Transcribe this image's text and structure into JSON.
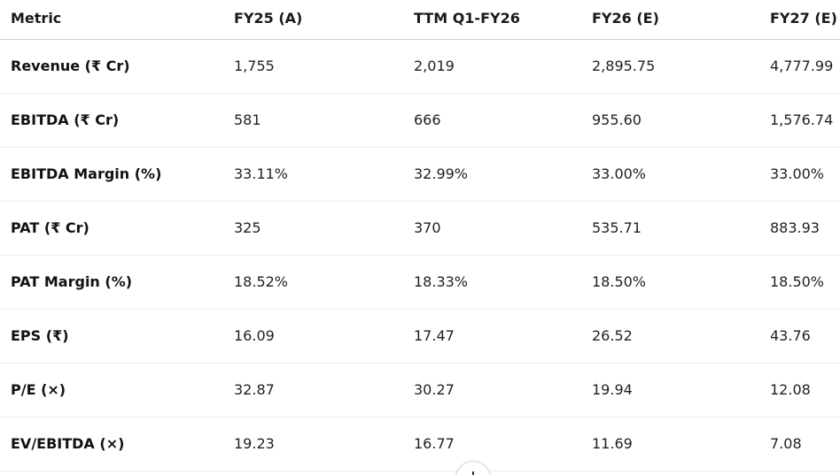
{
  "table": {
    "headers": [
      "Metric",
      "FY25 (A)",
      "TTM Q1-FY26",
      "FY26 (E)",
      "FY27 (E)"
    ],
    "rows": [
      [
        "Revenue (₹ Cr)",
        "1,755",
        "2,019",
        "2,895.75",
        "4,777.99"
      ],
      [
        "EBITDA (₹ Cr)",
        "581",
        "666",
        "955.60",
        "1,576.74"
      ],
      [
        "EBITDA Margin (%)",
        "33.11%",
        "32.99%",
        "33.00%",
        "33.00%"
      ],
      [
        "PAT (₹ Cr)",
        "325",
        "370",
        "535.71",
        "883.93"
      ],
      [
        "PAT Margin (%)",
        "18.52%",
        "18.33%",
        "18.50%",
        "18.50%"
      ],
      [
        "EPS (₹)",
        "16.09",
        "17.47",
        "26.52",
        "43.76"
      ],
      [
        "P/E (×)",
        "32.87",
        "30.27",
        "19.94",
        "12.08"
      ],
      [
        "EV/EBITDA (×)",
        "19.23",
        "16.77",
        "11.69",
        "7.08"
      ]
    ]
  },
  "scroll_button": {
    "icon": "arrow-down-icon"
  }
}
